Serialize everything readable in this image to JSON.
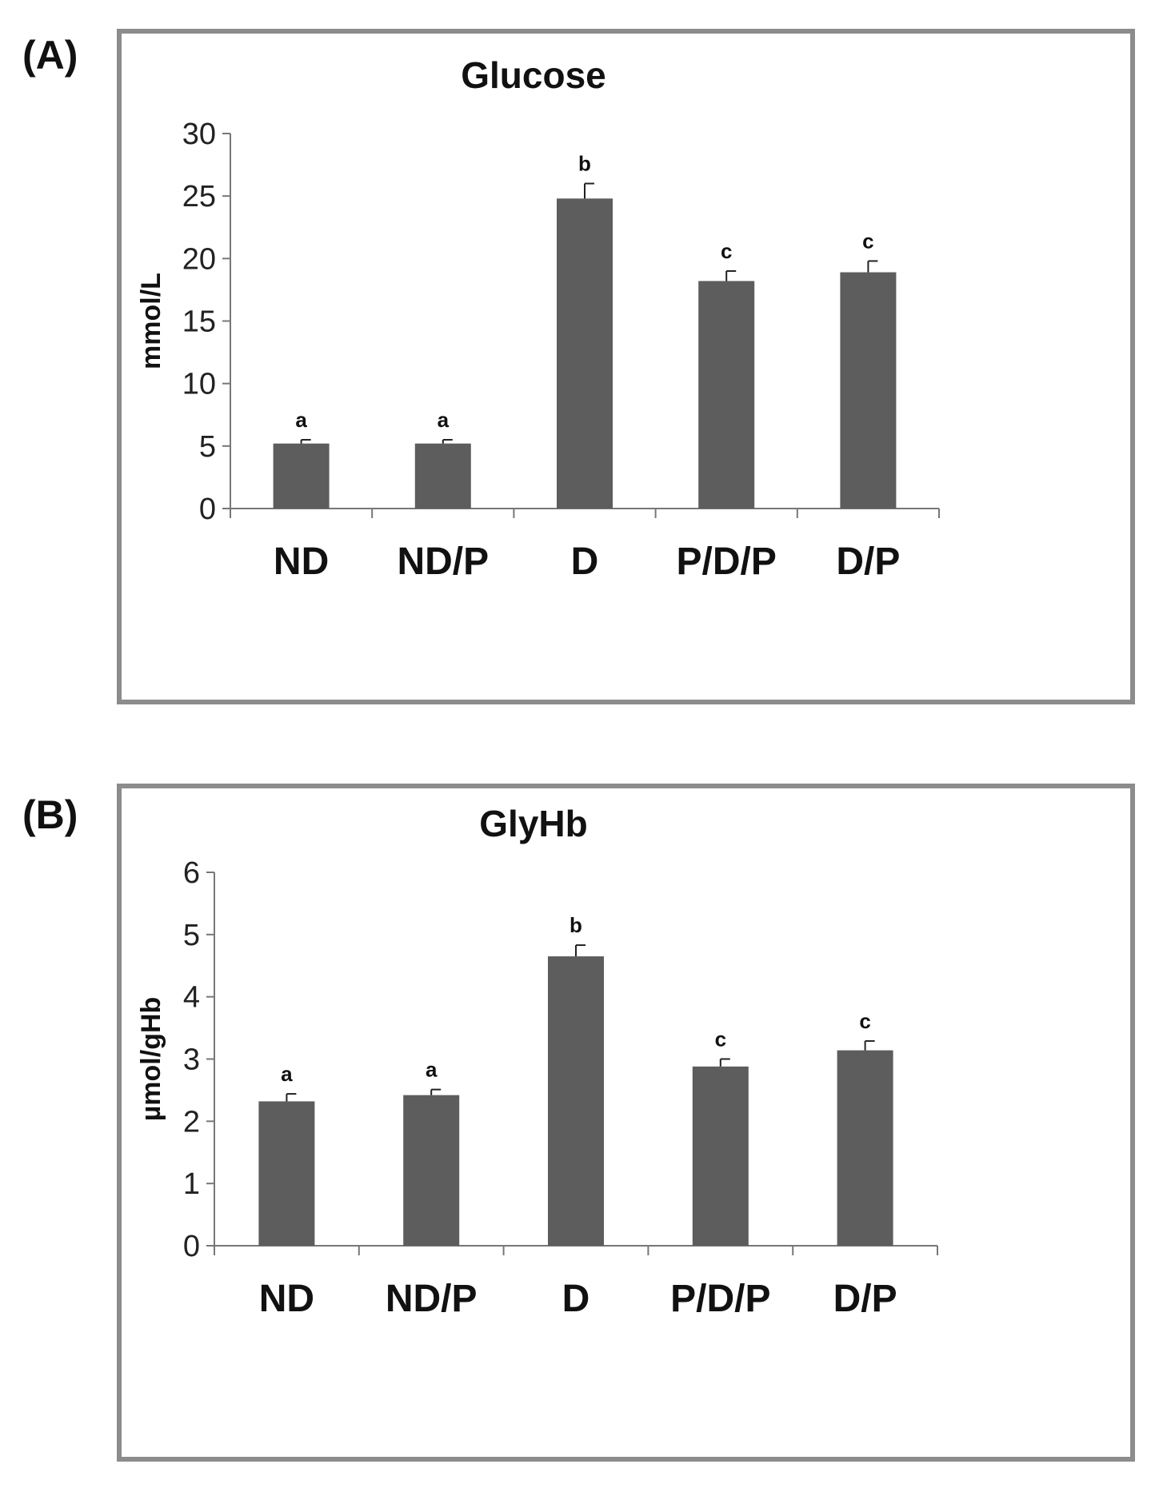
{
  "panels": {
    "a": {
      "label": "(A)"
    },
    "b": {
      "label": "(B)"
    }
  },
  "colors": {
    "bar": "#5c5d5c",
    "axis": "#777777",
    "frame": "#8c8c8c"
  },
  "chart_data": [
    {
      "type": "bar",
      "title": "Glucose",
      "xlabel": "",
      "ylabel": "mmol/L",
      "categories": [
        "ND",
        "ND/P",
        "D",
        "P/D/P",
        "D/P"
      ],
      "values": [
        5.2,
        5.2,
        24.8,
        18.2,
        18.9
      ],
      "errors": [
        0.3,
        0.3,
        1.2,
        0.8,
        0.9
      ],
      "significance": [
        "a",
        "a",
        "b",
        "c",
        "c"
      ],
      "ylim": [
        0,
        30
      ],
      "yticks": [
        0,
        5,
        10,
        15,
        20,
        25,
        30
      ],
      "ytick_labels": [
        "0",
        "5",
        "10",
        "15",
        "20",
        "25",
        "30"
      ],
      "grid": false
    },
    {
      "type": "bar",
      "title": "GlyHb",
      "xlabel": "",
      "ylabel": "µmol/gHb",
      "categories": [
        "ND",
        "ND/P",
        "D",
        "P/D/P",
        "D/P"
      ],
      "values": [
        2.32,
        2.42,
        4.65,
        2.88,
        3.14
      ],
      "errors": [
        0.12,
        0.09,
        0.18,
        0.12,
        0.15
      ],
      "significance": [
        "a",
        "a",
        "b",
        "c",
        "c"
      ],
      "ylim": [
        0,
        6
      ],
      "yticks": [
        0,
        1,
        2,
        3,
        4,
        5,
        6
      ],
      "ytick_labels": [
        "0",
        "1",
        "2",
        "3",
        "4",
        "5",
        "6"
      ],
      "grid": false
    }
  ]
}
